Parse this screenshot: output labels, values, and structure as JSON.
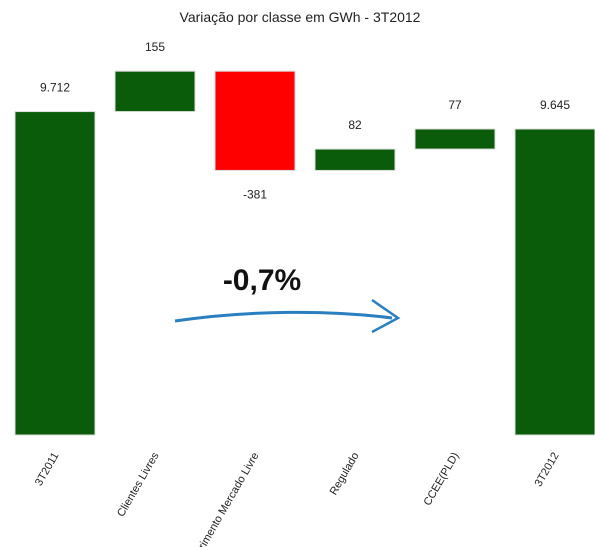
{
  "chart_data": {
    "type": "waterfall",
    "title": "Variação por classe em GWh  - 3T2012",
    "categories": [
      "3T2011",
      "Clientes Livres",
      "Suprimento Mercado Livre",
      "Regulado",
      "CCEE(PLD)",
      "3T2012"
    ],
    "values": [
      9712,
      155,
      -381,
      82,
      77,
      9645
    ],
    "value_labels": [
      "9.712",
      "155",
      "-381",
      "82",
      "77",
      "9.645"
    ],
    "measure": [
      "absolute",
      "relative",
      "relative",
      "relative",
      "relative",
      "total"
    ],
    "increase_color": "#0a5c0a",
    "decrease_color": "#ff0000",
    "total_color": "#0a5c0a",
    "ylim": [
      8470,
      9910
    ],
    "annotation": "-0,7%"
  }
}
